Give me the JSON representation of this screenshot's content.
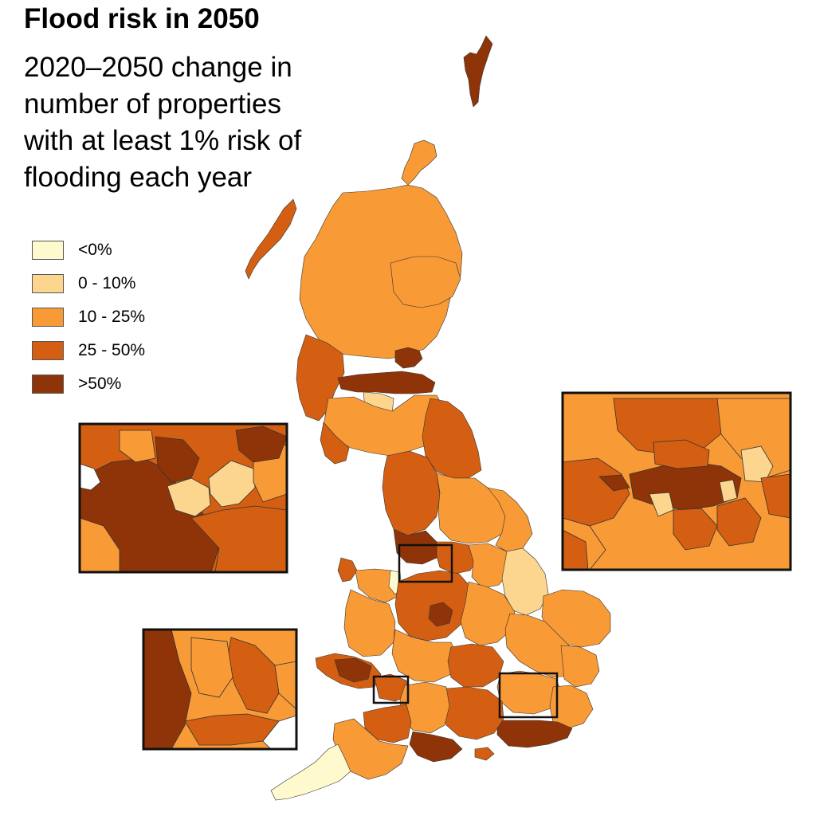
{
  "title": "Flood risk in 2050",
  "subtitle_lines": [
    "2020–2050 change in",
    "number of properties",
    "with at least 1% risk of",
    "flooding each year"
  ],
  "legend": [
    {
      "label": "<0%",
      "color": "#fffacd"
    },
    {
      "label": "0 - 10%",
      "color": "#fcd58e"
    },
    {
      "label": "10 - 25%",
      "color": "#f89a35"
    },
    {
      "label": "25 - 50%",
      "color": "#d45f12"
    },
    {
      "label": ">50%",
      "color": "#8f3408"
    }
  ]
}
